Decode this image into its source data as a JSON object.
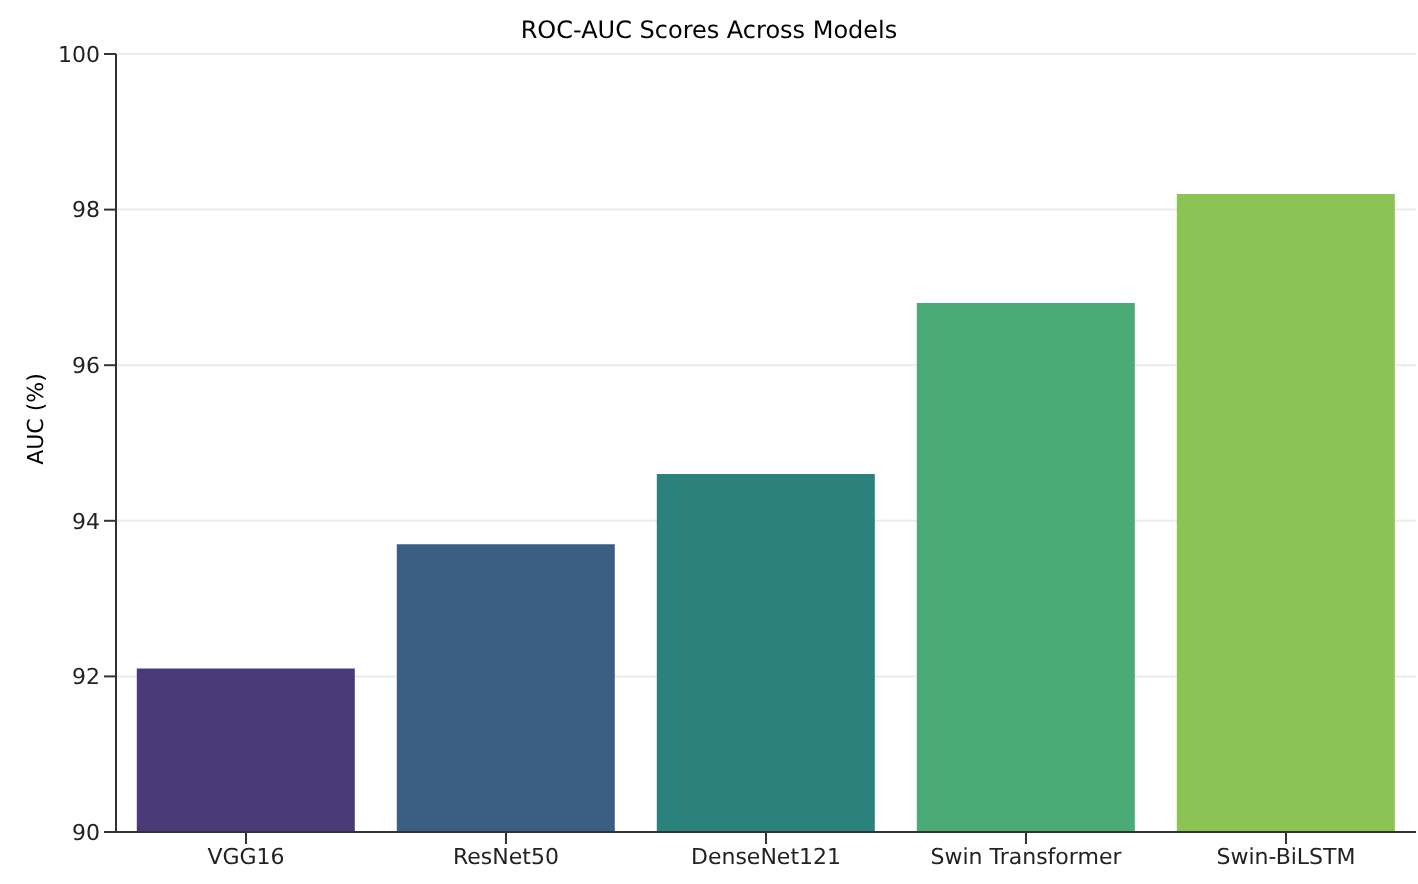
{
  "chart_data": {
    "type": "bar",
    "title": "ROC-AUC Scores Across Models",
    "ylabel": "AUC (%)",
    "categories": [
      "VGG16",
      "ResNet50",
      "DenseNet121",
      "Swin Transformer",
      "Swin-BiLSTM"
    ],
    "values": [
      92.1,
      93.7,
      94.6,
      96.8,
      98.2
    ],
    "colors": [
      "#4a3a78",
      "#3b5f82",
      "#2b817c",
      "#4aab76",
      "#8bc355"
    ],
    "ylim": [
      90,
      100
    ],
    "yticks": [
      90,
      92,
      94,
      96,
      98,
      100
    ],
    "grid": "y"
  }
}
